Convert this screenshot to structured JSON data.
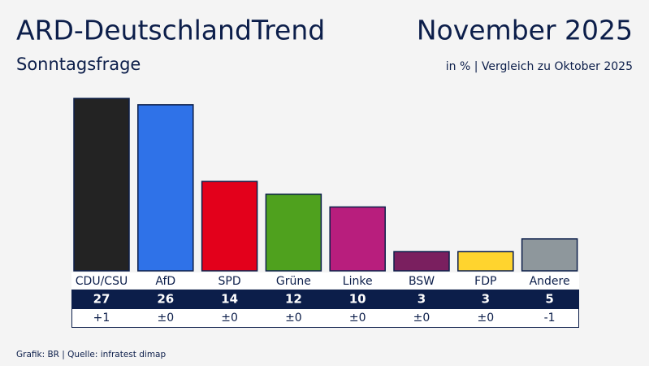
{
  "chart_data": {
    "type": "bar",
    "title": "ARD-DeutschlandTrend",
    "subtitle": "Sonntagsfrage",
    "date": "November 2025",
    "note": "in % | Vergleich zu Oktober 2025",
    "source": "Grafik: BR | Quelle: infratest dimap",
    "categories": [
      "CDU/CSU",
      "AfD",
      "SPD",
      "Grüne",
      "Linke",
      "BSW",
      "FDP",
      "Andere"
    ],
    "values": [
      27,
      26,
      14,
      12,
      10,
      3,
      3,
      5
    ],
    "colors": [
      "#232323",
      "#2f72e8",
      "#e3001b",
      "#4fa11e",
      "#b81e7d",
      "#7a1f5f",
      "#ffd42e",
      "#8e979c"
    ],
    "changes": [
      1,
      0,
      0,
      0,
      0,
      0,
      0,
      -1
    ],
    "change_labels": [
      "+1",
      "±0",
      "±0",
      "±0",
      "±0",
      "±0",
      "±0",
      "-1"
    ]
  }
}
